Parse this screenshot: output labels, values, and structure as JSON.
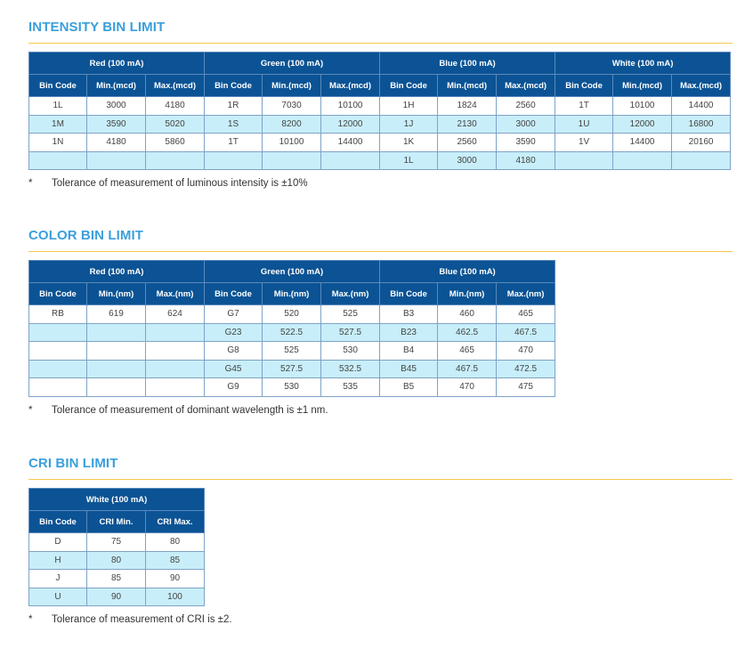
{
  "sections": [
    {
      "id": "intensity",
      "title": "INTENSITY BIN LIMIT",
      "groups": [
        "Red (100 mA)",
        "Green (100 mA)",
        "Blue (100 mA)",
        "White (100 mA)"
      ],
      "subheaders": [
        "Bin Code",
        "Min.(mcd)",
        "Max.(mcd)"
      ],
      "rows": [
        [
          "1L",
          "3000",
          "4180",
          "1R",
          "7030",
          "10100",
          "1H",
          "1824",
          "2560",
          "1T",
          "10100",
          "14400"
        ],
        [
          "1M",
          "3590",
          "5020",
          "1S",
          "8200",
          "12000",
          "1J",
          "2130",
          "3000",
          "1U",
          "12000",
          "16800"
        ],
        [
          "1N",
          "4180",
          "5860",
          "1T",
          "10100",
          "14400",
          "1K",
          "2560",
          "3590",
          "1V",
          "14400",
          "20160"
        ],
        [
          "",
          "",
          "",
          "",
          "",
          "",
          "1L",
          "3000",
          "4180",
          "",
          "",
          ""
        ]
      ],
      "note_marker": "*",
      "note": "Tolerance of measurement of luminous intensity is ±10%"
    },
    {
      "id": "color",
      "title": "COLOR BIN LIMIT",
      "groups": [
        "Red (100 mA)",
        "Green (100 mA)",
        "Blue (100 mA)"
      ],
      "subheaders": [
        "Bin Code",
        "Min.(nm)",
        "Max.(nm)"
      ],
      "rows": [
        [
          "RB",
          "619",
          "624",
          "G7",
          "520",
          "525",
          "B3",
          "460",
          "465"
        ],
        [
          "",
          "",
          "",
          "G23",
          "522.5",
          "527.5",
          "B23",
          "462.5",
          "467.5"
        ],
        [
          "",
          "",
          "",
          "G8",
          "525",
          "530",
          "B4",
          "465",
          "470"
        ],
        [
          "",
          "",
          "",
          "G45",
          "527.5",
          "532.5",
          "B45",
          "467.5",
          "472.5"
        ],
        [
          "",
          "",
          "",
          "G9",
          "530",
          "535",
          "B5",
          "470",
          "475"
        ]
      ],
      "note_marker": "*",
      "note": "Tolerance of measurement of dominant wavelength is ±1 nm."
    },
    {
      "id": "cri",
      "title": "CRI BIN LIMIT",
      "groups": [
        "White (100 mA)"
      ],
      "subheaders": [
        "Bin Code",
        "CRI Min.",
        "CRI Max."
      ],
      "rows": [
        [
          "D",
          "75",
          "80"
        ],
        [
          "H",
          "80",
          "85"
        ],
        [
          "J",
          "85",
          "90"
        ],
        [
          "U",
          "90",
          "100"
        ]
      ],
      "note_marker": "*",
      "note": "Tolerance of measurement of CRI is ±2."
    }
  ]
}
